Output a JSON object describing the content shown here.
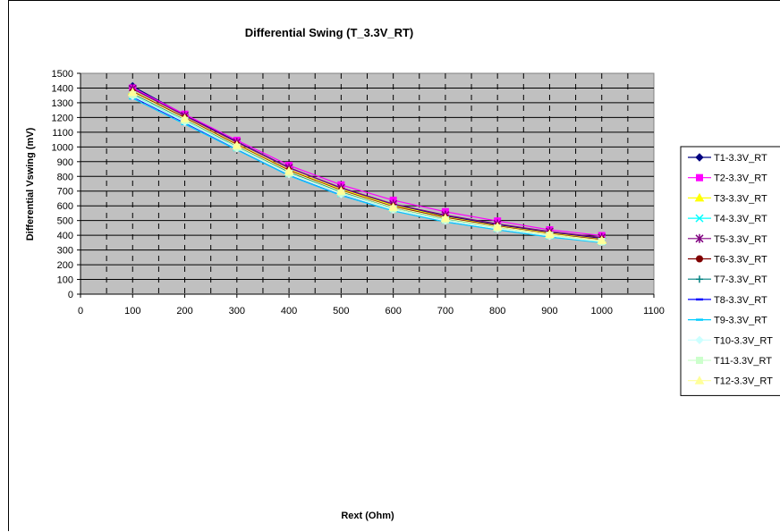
{
  "chart_data": {
    "type": "line",
    "title": "Differential Swing (T_3.3V_RT)",
    "xlabel": "Rext (Ohm)",
    "ylabel": "Differential Vswing (mV)",
    "xlim": [
      0,
      1100
    ],
    "ylim": [
      0,
      1500
    ],
    "xticks": [
      0,
      100,
      200,
      300,
      400,
      500,
      600,
      700,
      800,
      900,
      1000,
      1100
    ],
    "yticks": [
      0,
      100,
      200,
      300,
      400,
      500,
      600,
      700,
      800,
      900,
      1000,
      1100,
      1200,
      1300,
      1400,
      1500
    ],
    "grid": "major, dashed vertical",
    "legend_position": "right",
    "plot_background": "#c0c0c0",
    "x": [
      100,
      200,
      300,
      400,
      500,
      600,
      700,
      800,
      900,
      1000
    ],
    "series": [
      {
        "name": "T1-3.3V_RT",
        "color": "#000080",
        "marker": "diamond",
        "values": [
          1412,
          1218,
          1035,
          860,
          720,
          608,
          530,
          472,
          420,
          380
        ]
      },
      {
        "name": "T2-3.3V_RT",
        "color": "#ff00ff",
        "marker": "square",
        "values": [
          1400,
          1222,
          1045,
          875,
          742,
          638,
          560,
          497,
          437,
          398
        ]
      },
      {
        "name": "T3-3.3V_RT",
        "color": "#ffff00",
        "marker": "triangle",
        "values": [
          1380,
          1200,
          1020,
          845,
          712,
          603,
          525,
          465,
          415,
          372
        ]
      },
      {
        "name": "T4-3.3V_RT",
        "color": "#00ffff",
        "marker": "x",
        "values": [
          1350,
          1175,
          995,
          820,
          685,
          578,
          505,
          448,
          398,
          358
        ]
      },
      {
        "name": "T5-3.3V_RT",
        "color": "#800080",
        "marker": "star",
        "values": [
          1395,
          1212,
          1032,
          858,
          722,
          612,
          537,
          477,
          425,
          385
        ]
      },
      {
        "name": "T6-3.3V_RT",
        "color": "#800000",
        "marker": "circle",
        "values": [
          1375,
          1198,
          1015,
          840,
          705,
          595,
          520,
          462,
          410,
          370
        ]
      },
      {
        "name": "T7-3.3V_RT",
        "color": "#008080",
        "marker": "plus",
        "values": [
          1360,
          1185,
          1005,
          830,
          695,
          588,
          512,
          455,
          404,
          365
        ]
      },
      {
        "name": "T8-3.3V_RT",
        "color": "#0000ff",
        "marker": "dash",
        "values": [
          1340,
          1165,
          988,
          812,
          677,
          572,
          497,
          442,
          393,
          355
        ]
      },
      {
        "name": "T9-3.3V_RT",
        "color": "#00ccff",
        "marker": "dash",
        "values": [
          1330,
          1155,
          980,
          805,
          670,
          565,
          490,
          437,
          388,
          350
        ]
      },
      {
        "name": "T10-3.3V_RT",
        "color": "#ccffff",
        "marker": "diamond",
        "values": [
          1345,
          1170,
          990,
          815,
          680,
          573,
          498,
          444,
          395,
          355
        ]
      },
      {
        "name": "T11-3.3V_RT",
        "color": "#ccffcc",
        "marker": "square",
        "values": [
          1355,
          1180,
          998,
          822,
          688,
          580,
          505,
          450,
          400,
          358
        ]
      },
      {
        "name": "T12-3.3V_RT",
        "color": "#ffff99",
        "marker": "triangle",
        "values": [
          1370,
          1192,
          1010,
          835,
          700,
          590,
          515,
          458,
          407,
          365
        ]
      }
    ]
  }
}
